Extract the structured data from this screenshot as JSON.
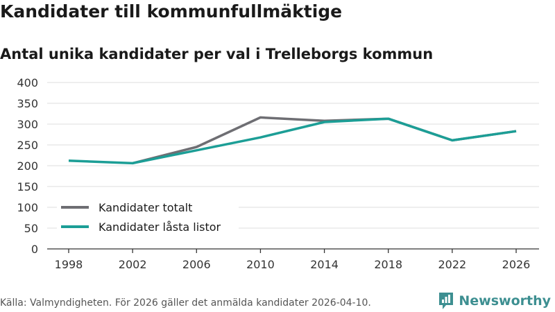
{
  "header": {
    "title": "Kandidater till kommunfullmäktige",
    "subtitle": "Antal unika kandidater per val i Trelleborgs kommun"
  },
  "footer": {
    "source": "Källa: Valmyndigheten. För 2026 gäller det anmälda kandidater 2026-04-10.",
    "brand": "Newsworthy"
  },
  "colors": {
    "series_total": "#6e6e73",
    "series_locked": "#1c9e96",
    "grid": "#dddddd",
    "axis": "#333333",
    "brand": "#3d8f91"
  },
  "chart_data": {
    "type": "line",
    "title": "Kandidater till kommunfullmäktige",
    "subtitle": "Antal unika kandidater per val i Trelleborgs kommun",
    "xlabel": "",
    "ylabel": "",
    "x": [
      1998,
      2002,
      2006,
      2010,
      2014,
      2018,
      2022,
      2026
    ],
    "xticks": [
      "1998",
      "2002",
      "2006",
      "2010",
      "2014",
      "2018",
      "2022",
      "2026"
    ],
    "ylim": [
      0,
      400
    ],
    "yticks": [
      0,
      50,
      100,
      150,
      200,
      250,
      300,
      350,
      400
    ],
    "grid": true,
    "legend_position": "bottom-left",
    "series": [
      {
        "name": "Kandidater totalt",
        "color": "#6e6e73",
        "values": [
          null,
          206,
          245,
          316,
          308,
          313,
          261,
          283
        ]
      },
      {
        "name": "Kandidater låsta listor",
        "color": "#1c9e96",
        "values": [
          212,
          206,
          237,
          268,
          305,
          313,
          261,
          283
        ]
      }
    ]
  }
}
